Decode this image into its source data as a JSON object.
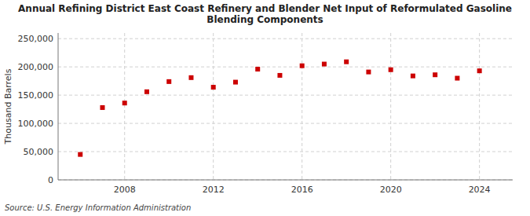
{
  "chart_data": {
    "type": "scatter",
    "title": "Annual Refining District East Coast Refinery and Blender Net Input of Reformulated Gasoline\nBlending Components",
    "ylabel": "Thousand Barrels",
    "source": "Source: U.S. Energy Information Administration",
    "x": [
      2006,
      2007,
      2008,
      2009,
      2010,
      2011,
      2012,
      2013,
      2014,
      2015,
      2016,
      2017,
      2018,
      2019,
      2020,
      2021,
      2022,
      2023,
      2024
    ],
    "values": [
      45000,
      128000,
      136000,
      156000,
      174000,
      181000,
      164000,
      173000,
      196000,
      185000,
      202000,
      205000,
      209000,
      191000,
      195000,
      184000,
      186000,
      180000,
      193000
    ],
    "color": "#cc0000",
    "marker": "square",
    "xlim": [
      2005.0,
      2025.5
    ],
    "xticks": [
      2008,
      2012,
      2016,
      2020,
      2024
    ],
    "ylim": [
      0,
      260000
    ],
    "yticks": [
      0,
      {
        "value": 50000,
        "label": "50,000"
      },
      {
        "value": 100000,
        "label": "100,000"
      },
      {
        "value": 150000,
        "label": "150,000"
      },
      {
        "value": 200000,
        "label": "200,000"
      },
      {
        "value": 250000,
        "label": "250,000"
      }
    ],
    "grid": true
  }
}
